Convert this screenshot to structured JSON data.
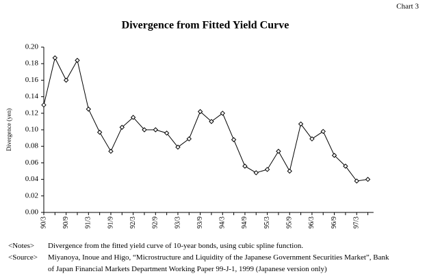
{
  "corner_label": "Chart 3",
  "chart_data": {
    "type": "line",
    "title": "Divergence from Fitted Yield Curve",
    "y_label": "Divergence (yen)",
    "categories": [
      "90/3",
      null,
      "90/9",
      null,
      "91/3",
      null,
      "91/9",
      null,
      "92/3",
      null,
      "92/9",
      null,
      "93/3",
      null,
      "93/9",
      null,
      "94/3",
      null,
      "94/9",
      null,
      "95/3",
      null,
      "95/9",
      null,
      "96/3",
      null,
      "96/9",
      null,
      "97/3",
      null
    ],
    "series": [
      {
        "name": "Divergence",
        "color": "#000000",
        "values": [
          0.13,
          0.187,
          0.16,
          0.184,
          0.125,
          0.097,
          0.074,
          0.103,
          0.115,
          0.1,
          0.1,
          0.096,
          0.079,
          0.089,
          0.122,
          0.11,
          0.12,
          0.088,
          0.056,
          0.048,
          0.052,
          0.074,
          0.05,
          0.107,
          0.089,
          0.098,
          0.069,
          0.056,
          0.038,
          0.04
        ]
      }
    ],
    "ylim": [
      0,
      0.2
    ],
    "yticks": [
      {
        "value": 0,
        "label": "0.00"
      },
      {
        "value": 0.02,
        "label": "0.02"
      },
      {
        "value": 0.04,
        "label": "0.04"
      },
      {
        "value": 0.06,
        "label": "0.06"
      },
      {
        "value": 0.08,
        "label": "0.08"
      },
      {
        "value": 0.1,
        "label": "0.10"
      },
      {
        "value": 0.12,
        "label": "0.12"
      },
      {
        "value": 0.14,
        "label": "0.14"
      },
      {
        "value": 0.16,
        "label": "0.16"
      },
      {
        "value": 0.18,
        "label": "0.18"
      },
      {
        "value": 0.2,
        "label": "0.20"
      }
    ],
    "grid": false
  },
  "notes": [
    {
      "label": "<Notes>",
      "lines": [
        "Divergence from the fitted yield curve of 10-year bonds, using cubic spline function."
      ]
    },
    {
      "label": "<Source>",
      "lines": [
        "Miyanoya, Inoue and Higo, “Microstructure and Liquidity of the Japanese Government Securities Market”, Bank",
        "of Japan Financial Markets Department Working Paper 99-J-1, 1999 (Japanese version only)"
      ]
    }
  ]
}
